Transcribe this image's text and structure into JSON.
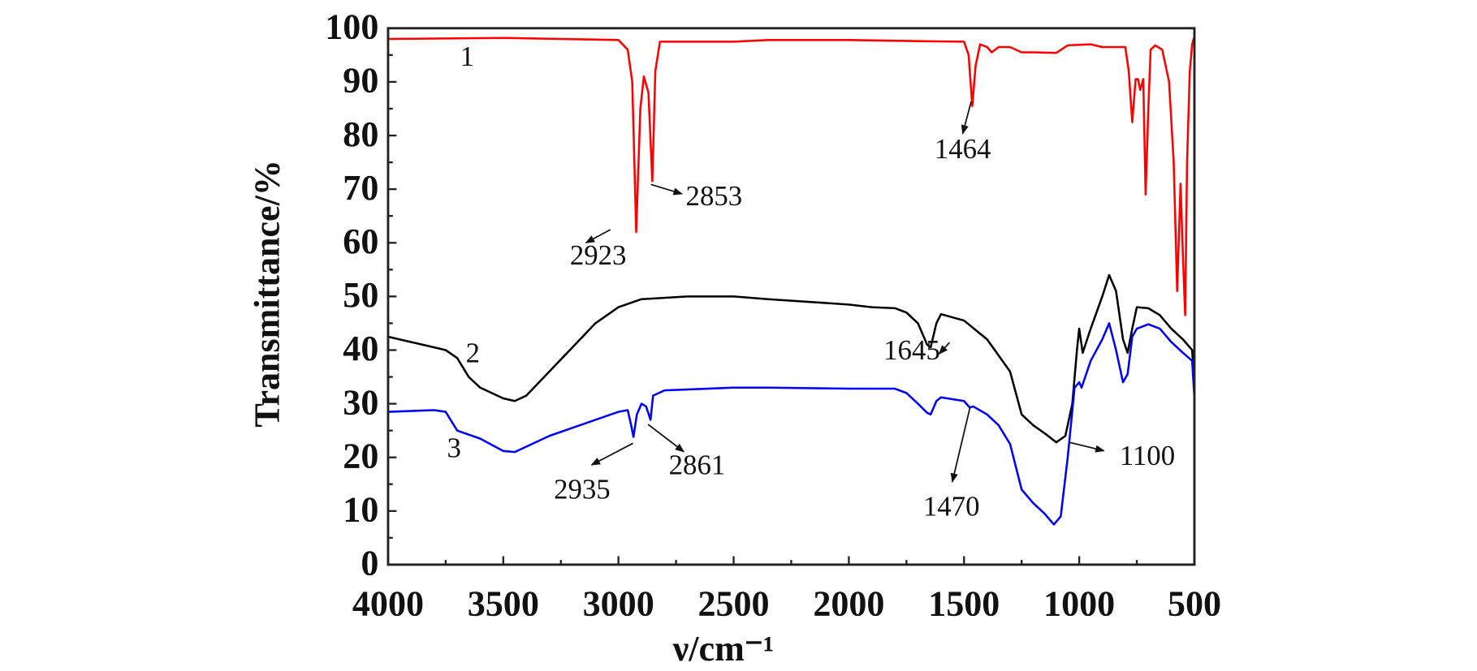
{
  "chart_data": {
    "type": "line",
    "title": "",
    "xlabel": "ν/cm⁻¹",
    "xlabel_main": "ν",
    "xlabel_unit": "/cm",
    "xlabel_sup": "−1",
    "ylabel": "Transmittance/%",
    "xlim": [
      4000,
      500
    ],
    "ylim": [
      0,
      100
    ],
    "x_ticks": [
      4000,
      3500,
      3000,
      2500,
      2000,
      1500,
      1000,
      500
    ],
    "x_tick_labels": [
      "4000",
      "3500",
      "3000",
      "2500",
      "2000",
      "1500",
      "1000",
      "500"
    ],
    "y_ticks": [
      0,
      10,
      20,
      30,
      40,
      50,
      60,
      70,
      80,
      90,
      100
    ],
    "y_tick_labels": [
      "0",
      "10",
      "20",
      "30",
      "40",
      "50",
      "60",
      "70",
      "80",
      "90",
      "100"
    ],
    "grid": false,
    "series": [
      {
        "name": "1",
        "color": "#ff0000",
        "x": [
          4000,
          3500,
          3000,
          2960,
          2940,
          2923,
          2905,
          2890,
          2870,
          2853,
          2840,
          2820,
          2500,
          2350,
          2000,
          1700,
          1500,
          1480,
          1464,
          1450,
          1430,
          1400,
          1380,
          1350,
          1300,
          1250,
          1200,
          1100,
          1050,
          950,
          900,
          800,
          785,
          770,
          755,
          745,
          735,
          722,
          712,
          700,
          690,
          670,
          640,
          610,
          590,
          575,
          560,
          552,
          545,
          540,
          532,
          520,
          510,
          500
        ],
        "y": [
          98,
          98.2,
          97.8,
          96,
          90,
          62,
          85,
          91,
          88,
          71.5,
          92,
          97.5,
          97.5,
          97.8,
          97.8,
          97.6,
          97.5,
          95,
          85.5,
          93,
          97,
          96.5,
          95.5,
          96.5,
          96.5,
          95.5,
          95.5,
          95.4,
          96.8,
          97,
          96.5,
          96.5,
          92,
          82.5,
          90.5,
          90.5,
          88.5,
          90.5,
          69,
          85,
          96,
          96.8,
          96,
          90,
          75,
          51,
          71,
          60,
          52,
          46.5,
          75,
          92,
          97,
          98.5
        ]
      },
      {
        "name": "2",
        "color": "#000000",
        "x": [
          4000,
          3900,
          3800,
          3750,
          3700,
          3650,
          3600,
          3500,
          3450,
          3400,
          3300,
          3200,
          3100,
          3000,
          2900,
          2700,
          2500,
          2350,
          2000,
          1900,
          1800,
          1750,
          1700,
          1660,
          1645,
          1620,
          1600,
          1500,
          1400,
          1300,
          1250,
          1200,
          1150,
          1100,
          1060,
          1030,
          1010,
          1000,
          985,
          950,
          900,
          870,
          840,
          810,
          790,
          770,
          750,
          700,
          650,
          600,
          550,
          510,
          500
        ],
        "y": [
          42.5,
          41.5,
          40.5,
          40,
          38.5,
          35,
          33,
          31,
          30.5,
          31.5,
          36,
          40.5,
          45,
          48,
          49.5,
          50,
          50,
          49.5,
          48.5,
          48,
          47.8,
          47,
          45,
          41,
          40.5,
          45,
          46.7,
          45.5,
          42,
          36,
          28,
          26,
          24.5,
          22.8,
          24,
          30,
          40,
          44,
          39.5,
          44,
          50,
          54,
          51,
          42,
          39.5,
          44,
          48,
          47.8,
          46.5,
          44,
          42,
          40,
          33
        ]
      },
      {
        "name": "3",
        "color": "#0000ff",
        "x": [
          4000,
          3800,
          3750,
          3700,
          3600,
          3500,
          3450,
          3400,
          3300,
          3200,
          3100,
          3000,
          2960,
          2945,
          2935,
          2920,
          2900,
          2880,
          2861,
          2850,
          2800,
          2500,
          2350,
          2000,
          1800,
          1750,
          1700,
          1660,
          1645,
          1620,
          1600,
          1500,
          1475,
          1460,
          1400,
          1350,
          1300,
          1250,
          1200,
          1150,
          1110,
          1080,
          1050,
          1020,
          1000,
          990,
          950,
          900,
          870,
          840,
          810,
          790,
          770,
          750,
          700,
          650,
          600,
          550,
          510,
          500
        ],
        "y": [
          28.5,
          28.8,
          28.5,
          25,
          23.5,
          21.2,
          21,
          22,
          24,
          25.5,
          27,
          28.5,
          28.8,
          26,
          23.8,
          28,
          30,
          29.5,
          27,
          31.5,
          32.5,
          33,
          33,
          32.8,
          32.8,
          32,
          30,
          28.3,
          28,
          30.5,
          31.2,
          30.5,
          29.3,
          29.5,
          28,
          26,
          22.5,
          14,
          11.5,
          9.5,
          7.5,
          9,
          20,
          33,
          34,
          33,
          38,
          42,
          45,
          40,
          34,
          35.5,
          42.5,
          44,
          44.8,
          44,
          41.5,
          39.5,
          38,
          31
        ]
      }
    ],
    "annotations": [
      {
        "label": "2923",
        "series": "1",
        "x": 2923,
        "y": 62
      },
      {
        "label": "2853",
        "series": "1",
        "x": 2853,
        "y": 71.5
      },
      {
        "label": "1464",
        "series": "1",
        "x": 1464,
        "y": 85.5
      },
      {
        "label": "1645",
        "series": "2",
        "x": 1645,
        "y": 40.5
      },
      {
        "label": "1100",
        "series": "2",
        "x": 1100,
        "y": 22.8
      },
      {
        "label": "2935",
        "series": "3",
        "x": 2935,
        "y": 23.8
      },
      {
        "label": "2861",
        "series": "3",
        "x": 2861,
        "y": 27
      },
      {
        "label": "1470",
        "series": "3",
        "x": 1470,
        "y": 29.3
      }
    ]
  }
}
